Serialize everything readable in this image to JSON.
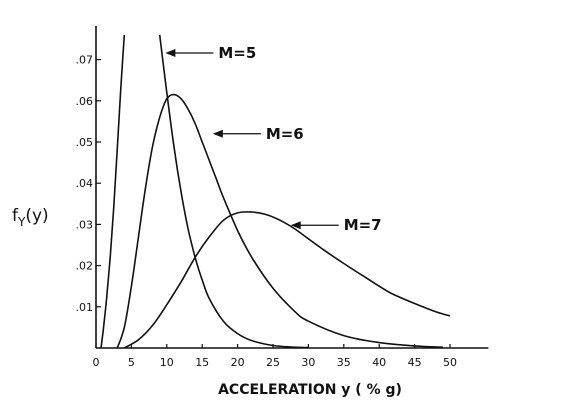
{
  "chart_data": {
    "type": "line",
    "xlabel": "ACCELERATION  y  ( % g)",
    "ylabel_main": "f",
    "ylabel_sub": "Y",
    "ylabel_arg": "(y)",
    "xlim": [
      0,
      55
    ],
    "ylim": [
      0,
      0.075
    ],
    "x_ticks": [
      0,
      5,
      10,
      15,
      20,
      25,
      30,
      35,
      40,
      45,
      50
    ],
    "x_tick_labels": [
      "0",
      "5",
      "10",
      "15",
      "20",
      "25",
      "30",
      "35",
      "40",
      "45",
      "50"
    ],
    "y_ticks": [
      0.01,
      0.02,
      0.03,
      0.04,
      0.05,
      0.06,
      0.07
    ],
    "y_tick_labels": [
      ".01",
      ".02",
      ".03",
      ".04",
      ".05",
      ".06",
      ".07"
    ],
    "grid": false,
    "series": [
      {
        "name": "M=5",
        "x": [
          0.7,
          1,
          1.5,
          2,
          2.5,
          3,
          3.5,
          4
        ],
        "y": [
          0.0,
          0.004,
          0.012,
          0.022,
          0.034,
          0.048,
          0.063,
          0.076
        ]
      },
      {
        "name": "",
        "x": [
          9,
          10,
          11,
          12,
          13,
          14,
          15,
          16,
          18,
          20,
          22,
          25,
          28,
          30
        ],
        "y": [
          0.076,
          0.062,
          0.049,
          0.038,
          0.029,
          0.022,
          0.0165,
          0.012,
          0.0065,
          0.0035,
          0.0018,
          0.0006,
          0.0002,
          0.0001
        ]
      },
      {
        "name": "M=6",
        "x": [
          3,
          4,
          5,
          6,
          7,
          8,
          9,
          10,
          11,
          12,
          13,
          14,
          15,
          16,
          17,
          18,
          20,
          22,
          25,
          28,
          30,
          35,
          40,
          45,
          49
        ],
        "y": [
          0.0,
          0.005,
          0.015,
          0.027,
          0.039,
          0.049,
          0.056,
          0.0605,
          0.0615,
          0.0605,
          0.058,
          0.0545,
          0.05,
          0.0455,
          0.041,
          0.0365,
          0.0285,
          0.022,
          0.0145,
          0.009,
          0.0065,
          0.003,
          0.0013,
          0.0005,
          0.0002
        ]
      },
      {
        "name": "M=7",
        "x": [
          4,
          6,
          8,
          10,
          12,
          14,
          16,
          18,
          20,
          22,
          24,
          26,
          28,
          30,
          32,
          35,
          38,
          40,
          42,
          45,
          48,
          50
        ],
        "y": [
          0.0,
          0.002,
          0.0055,
          0.0105,
          0.016,
          0.022,
          0.027,
          0.031,
          0.0328,
          0.033,
          0.0324,
          0.031,
          0.029,
          0.0265,
          0.024,
          0.0205,
          0.0172,
          0.015,
          0.013,
          0.0108,
          0.0088,
          0.0078
        ]
      }
    ],
    "annotations": [
      {
        "text": "M=5",
        "arrow_to_x": 9.8,
        "arrow_to_y": 0.0716
      },
      {
        "text": "M=6",
        "arrow_to_x": 16.5,
        "arrow_to_y": 0.052
      },
      {
        "text": "M=7",
        "arrow_to_x": 27.5,
        "arrow_to_y": 0.0298
      }
    ]
  }
}
